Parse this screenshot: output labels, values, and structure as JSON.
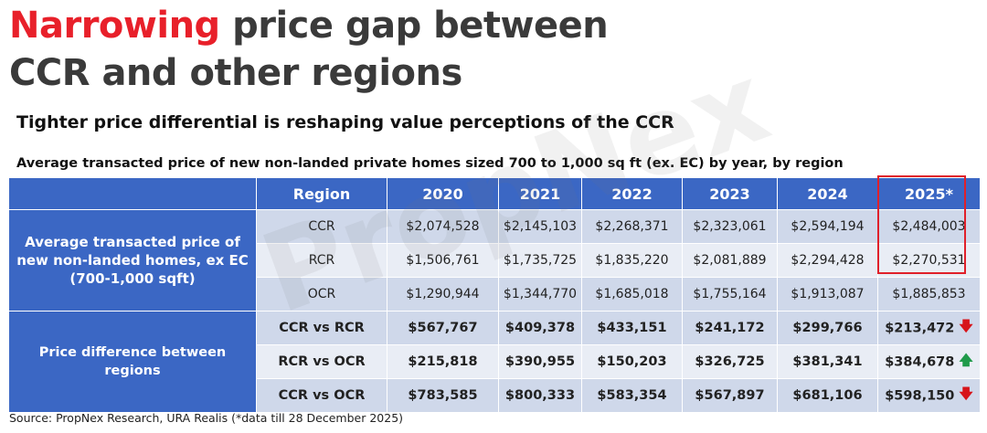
{
  "title": {
    "highlight": "Narrowing",
    "rest_line1": " price gap between",
    "line2": "CCR and other regions"
  },
  "subtitle": "Tighter price differential is reshaping value perceptions of the CCR",
  "caption": "Average transacted price of new non-landed private homes sized 700 to 1,000 sq ft (ex. EC) by year, by region",
  "watermark": "PropNex",
  "table": {
    "headers": [
      "Region",
      "2020",
      "2021",
      "2022",
      "2023",
      "2024",
      "2025*"
    ],
    "price_group_label": "Average transacted price of new non-landed homes, ex EC (700-1,000 sqft)",
    "price_rows": [
      {
        "region": "CCR",
        "values": [
          "$2,074,528",
          "$2,145,103",
          "$2,268,371",
          "$2,323,061",
          "$2,594,194",
          "$2,484,003"
        ]
      },
      {
        "region": "RCR",
        "values": [
          "$1,506,761",
          "$1,735,725",
          "$1,835,220",
          "$2,081,889",
          "$2,294,428",
          "$2,270,531"
        ]
      },
      {
        "region": "OCR",
        "values": [
          "$1,290,944",
          "$1,344,770",
          "$1,685,018",
          "$1,755,164",
          "$1,913,087",
          "$1,885,853"
        ]
      }
    ],
    "diff_group_label": "Price difference between regions",
    "diff_rows": [
      {
        "region": "CCR vs RCR",
        "values": [
          "$567,767",
          "$409,378",
          "$433,151",
          "$241,172",
          "$299,766",
          "$213,472"
        ],
        "trend": "down"
      },
      {
        "region": "RCR vs OCR",
        "values": [
          "$215,818",
          "$390,955",
          "$150,203",
          "$326,725",
          "$381,341",
          "$384,678"
        ],
        "trend": "up"
      },
      {
        "region": "CCR vs OCR",
        "values": [
          "$783,585",
          "$800,333",
          "$583,354",
          "$567,897",
          "$681,106",
          "$598,150"
        ],
        "trend": "down"
      }
    ]
  },
  "icons": {
    "down": "red-down-arrow-icon",
    "up": "green-up-arrow-icon"
  },
  "colors": {
    "header_blue": "#3b67c4",
    "accent_red": "#e8202a",
    "up_green": "#1f9a4a",
    "down_red": "#d7141a"
  },
  "source": "Source: PropNex Research, URA Realis (*data till 28 December 2025)"
}
